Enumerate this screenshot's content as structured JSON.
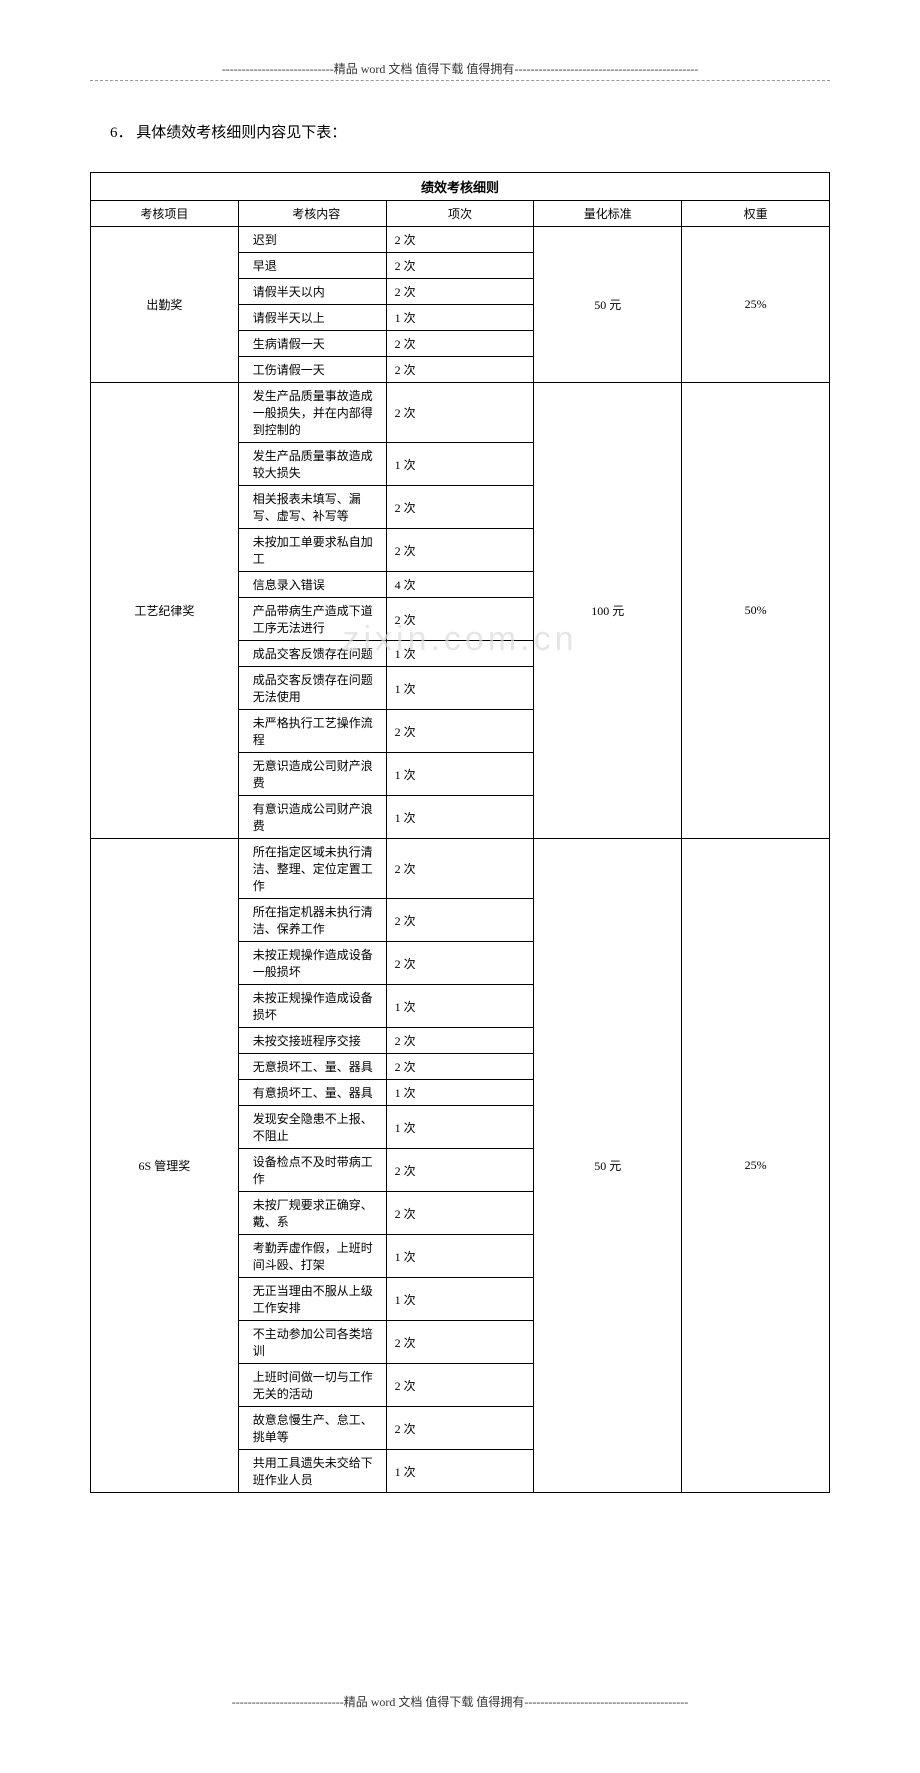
{
  "header": {
    "line1": "----------------------------精品 word 文档  值得下载  值得拥有----------------------------------------------"
  },
  "section_number": "6．",
  "section_title": "具体绩效考核细则内容见下表：",
  "table": {
    "caption": "绩效考核细则",
    "headers": {
      "project": "考核项目",
      "content": "考核内容",
      "count": "项次",
      "standard": "量化标准",
      "weight": "权重"
    },
    "groups": [
      {
        "project": "出勤奖",
        "standard": "50 元",
        "weight": "25%",
        "rows": [
          {
            "content": "迟到",
            "count": "2 次"
          },
          {
            "content": "早退",
            "count": "2 次"
          },
          {
            "content": "请假半天以内",
            "count": "2 次"
          },
          {
            "content": "请假半天以上",
            "count": "1 次"
          },
          {
            "content": "生病请假一天",
            "count": "2 次"
          },
          {
            "content": "工伤请假一天",
            "count": "2 次"
          }
        ]
      },
      {
        "project": "工艺纪律奖",
        "standard": "100 元",
        "weight": "50%",
        "rows": [
          {
            "content": "发生产品质量事故造成一般损失，并在内部得到控制的",
            "count": "2 次"
          },
          {
            "content": "发生产品质量事故造成较大损失",
            "count": "1 次"
          },
          {
            "content": "相关报表未填写、漏写、虚写、补写等",
            "count": "2 次"
          },
          {
            "content": "未按加工单要求私自加工",
            "count": "2 次"
          },
          {
            "content": "信息录入错误",
            "count": "4 次"
          },
          {
            "content": "产品带病生产造成下道工序无法进行",
            "count": "2 次"
          },
          {
            "content": "成品交客反馈存在问题",
            "count": "1 次"
          },
          {
            "content": "成品交客反馈存在问题无法使用",
            "count": "1 次"
          },
          {
            "content": "未严格执行工艺操作流程",
            "count": "2 次"
          },
          {
            "content": "无意识造成公司财产浪费",
            "count": "1 次"
          },
          {
            "content": "有意识造成公司财产浪费",
            "count": "1 次"
          }
        ]
      },
      {
        "project": "6S 管理奖",
        "standard": "50 元",
        "weight": "25%",
        "rows": [
          {
            "content": "所在指定区域未执行清洁、整理、定位定置工作",
            "count": "2 次"
          },
          {
            "content": "所在指定机器未执行清洁、保养工作",
            "count": "2 次"
          },
          {
            "content": "未按正规操作造成设备一般损坏",
            "count": "2 次"
          },
          {
            "content": "未按正规操作造成设备损坏",
            "count": "1 次"
          },
          {
            "content": "未按交接班程序交接",
            "count": "2 次"
          },
          {
            "content": "无意损坏工、量、器具",
            "count": "2 次"
          },
          {
            "content": "有意损坏工、量、器具",
            "count": "1 次"
          },
          {
            "content": "发现安全隐患不上报、不阻止",
            "count": "1 次"
          },
          {
            "content": "设备检点不及时带病工作",
            "count": "2 次"
          },
          {
            "content": "未按厂规要求正确穿、戴、系",
            "count": "2 次"
          },
          {
            "content": "考勤弄虚作假，上班时间斗殴、打架",
            "count": "1 次"
          },
          {
            "content": "无正当理由不服从上级工作安排",
            "count": "1 次"
          },
          {
            "content": "不主动参加公司各类培训",
            "count": "2 次"
          },
          {
            "content": "上班时间做一切与工作无关的活动",
            "count": "2 次"
          },
          {
            "content": "故意怠慢生产、怠工、挑单等",
            "count": "2 次"
          },
          {
            "content": "共用工具遗失未交给下班作业人员",
            "count": "1 次"
          }
        ]
      }
    ]
  },
  "watermark": "zixin.com.cn",
  "footer": {
    "line1": "----------------------------精品 word 文档  值得下载  值得拥有-----------------------------------------"
  },
  "style": {
    "text_color": "#000000",
    "bg_color": "#ffffff",
    "border_color": "#000000",
    "watermark_color": "#dcdcdc",
    "base_fontsize": 13,
    "table_fontsize": 12
  }
}
